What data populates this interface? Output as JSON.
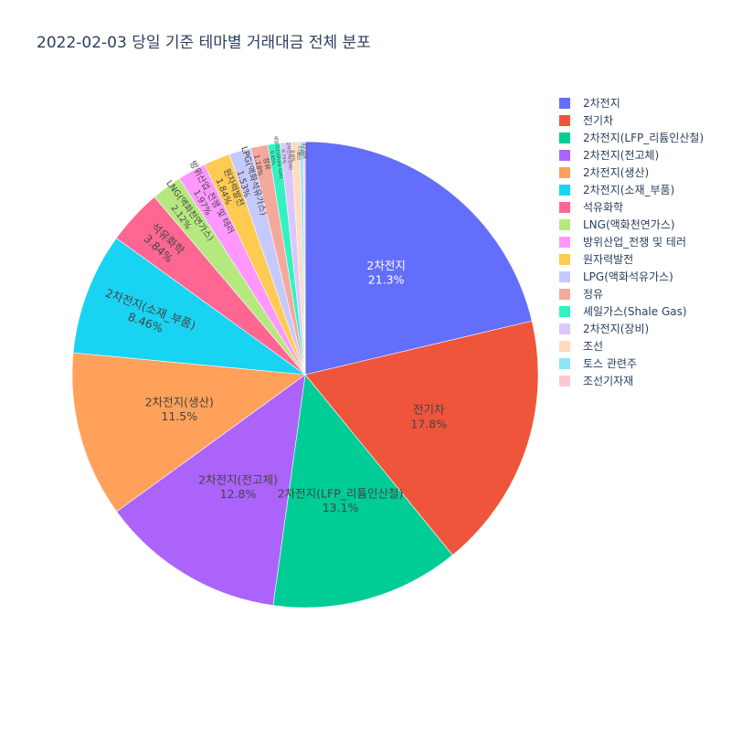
{
  "chart_data": {
    "type": "pie",
    "title": "2022-02-03 당일 기준 테마별 거래대금 전체 분포",
    "direction": "clockwise",
    "start": "12 o'clock",
    "legend_position": "right",
    "slices": [
      {
        "label": "2차전지",
        "percent": 21.3,
        "percent_text": "21.3%",
        "color": "#636efa",
        "text_color": "#ffffff"
      },
      {
        "label": "전기차",
        "percent": 17.8,
        "percent_text": "17.8%",
        "color": "#EF553B",
        "text_color": "#444444"
      },
      {
        "label": "2차전지(LFP_리튬인산철)",
        "percent": 13.1,
        "percent_text": "13.1%",
        "color": "#00cc96",
        "text_color": "#444444"
      },
      {
        "label": "2차전지(전고체)",
        "percent": 12.8,
        "percent_text": "12.8%",
        "color": "#ab63fa",
        "text_color": "#444444"
      },
      {
        "label": "2차전지(생산)",
        "percent": 11.5,
        "percent_text": "11.5%",
        "color": "#FFA15A",
        "text_color": "#444444"
      },
      {
        "label": "2차전지(소재_부품)",
        "percent": 8.46,
        "percent_text": "8.46%",
        "color": "#19d3f3",
        "text_color": "#444444"
      },
      {
        "label": "석유화학",
        "percent": 3.84,
        "percent_text": "3.84%",
        "color": "#FF6692",
        "text_color": "#444444"
      },
      {
        "label": "LNG(액화천연가스)",
        "percent": 2.12,
        "percent_text": "2.12%",
        "color": "#B6E880",
        "text_color": "#444444"
      },
      {
        "label": "방위산업_전쟁 및 테러",
        "percent": 1.97,
        "percent_text": "1.97%",
        "color": "#FF97FF",
        "text_color": "#444444"
      },
      {
        "label": "원자력발전",
        "percent": 1.84,
        "percent_text": "1.84%",
        "color": "#FECB52",
        "text_color": "#444444"
      },
      {
        "label": "LPG(액화석유가스)",
        "percent": 1.53,
        "percent_text": "1.53%",
        "color": "#c6c9fc",
        "text_color": "#444444"
      },
      {
        "label": "정유",
        "percent": 1.18,
        "percent_text": "1.18%",
        "color": "#f4a99d",
        "text_color": "#444444"
      },
      {
        "label": "셰일가스(Shale Gas)",
        "percent": 0.85,
        "percent_text": "0.85%",
        "color": "#33f2c0",
        "text_color": "#444444"
      },
      {
        "label": "2차전지(장비)",
        "percent": 0.75,
        "percent_text": "0.75%",
        "color": "#ddc6fc",
        "text_color": "#444444"
      },
      {
        "label": "조선",
        "percent": 0.6,
        "percent_text": "0.6%",
        "color": "#ffdbc0",
        "text_color": "#444444"
      },
      {
        "label": "토스 관련주",
        "percent": 0.22,
        "percent_text": "0.22%",
        "color": "#8ce4f8",
        "text_color": "#444444"
      },
      {
        "label": "조선기자재",
        "percent": 0.14,
        "percent_text": "0.14%",
        "color": "#ffc7d6",
        "text_color": "#444444"
      }
    ]
  }
}
